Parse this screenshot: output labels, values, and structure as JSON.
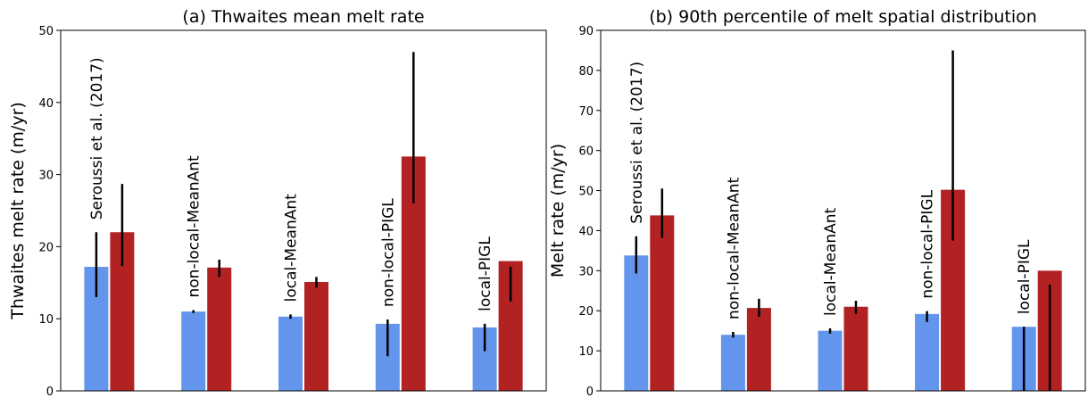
{
  "chart_data": [
    {
      "type": "bar",
      "title": "(a) Thwaites mean melt rate",
      "y_label": "Thwaites melt rate (m/yr)",
      "categories": [
        "Seroussi et al. (2017)",
        "non-local-MeanAnt",
        "local-MeanAnt",
        "non-local-PIGL",
        "local-PIGL"
      ],
      "series": [
        {
          "color": "#6495ed",
          "values": [
            17.2,
            11,
            10.3,
            9.3,
            8.8
          ],
          "error_ranges": [
            [
              13,
              22
            ],
            [
              10.8,
              11.2
            ],
            [
              10,
              10.6
            ],
            [
              4.8,
              9.9
            ],
            [
              5.5,
              9.3
            ]
          ]
        },
        {
          "color": "#b22222",
          "values": [
            22,
            17.1,
            15.1,
            32.5,
            18
          ],
          "error_ranges": [
            [
              17.3,
              28.7
            ],
            [
              15.8,
              18.2
            ],
            [
              14.3,
              15.8
            ],
            [
              26,
              47
            ],
            [
              12.4,
              17.2
            ]
          ]
        }
      ],
      "ylim": [
        0,
        50
      ],
      "yticks": [
        0,
        10,
        20,
        30,
        40,
        50
      ]
    },
    {
      "type": "bar",
      "title": "(b) 90th percentile of melt spatial distribution",
      "y_label": "Melt rate (m/yr)",
      "categories": [
        "Seroussi et al. (2017)",
        "non-local-MeanAnt",
        "local-MeanAnt",
        "non-local-PIGL",
        "local-PIGL"
      ],
      "series": [
        {
          "color": "#6495ed",
          "values": [
            33.8,
            14,
            15,
            19.2,
            16
          ],
          "error_ranges": [
            [
              29.3,
              38.6
            ],
            [
              13.3,
              14.7
            ],
            [
              14.3,
              15.6
            ],
            [
              17.2,
              19.9
            ],
            [
              0,
              16
            ]
          ]
        },
        {
          "color": "#b22222",
          "values": [
            43.8,
            20.7,
            21,
            50.2,
            30
          ],
          "error_ranges": [
            [
              38.2,
              50.5
            ],
            [
              18.5,
              23
            ],
            [
              19.2,
              22.5
            ],
            [
              37.5,
              85
            ],
            [
              0,
              26.5
            ]
          ]
        }
      ],
      "ylim": [
        0,
        90
      ],
      "yticks": [
        0,
        10,
        20,
        30,
        40,
        50,
        60,
        70,
        80,
        90
      ]
    }
  ]
}
